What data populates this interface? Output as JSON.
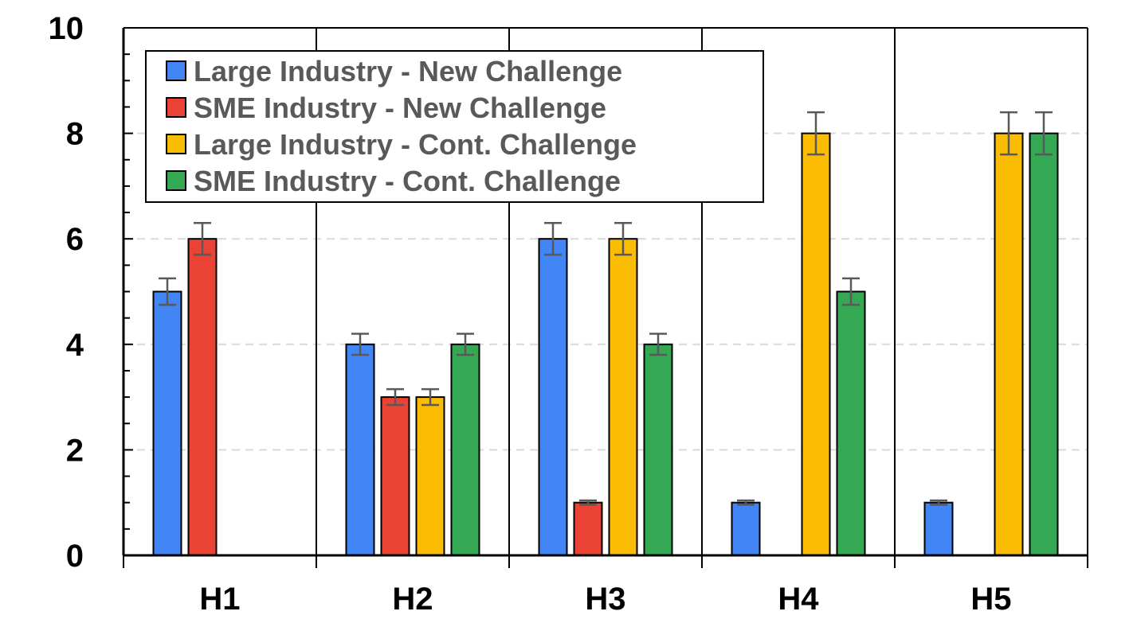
{
  "chart_data": {
    "type": "bar",
    "title": "",
    "xlabel": "",
    "ylabel": "",
    "ylim": [
      0,
      10
    ],
    "yticks": [
      "0",
      "2",
      "4",
      "6",
      "8",
      "10"
    ],
    "grid": true,
    "legend_position": "top-left",
    "categories": [
      "H1",
      "H2",
      "H3",
      "H4",
      "H5"
    ],
    "series": [
      {
        "name": "Large Industry - New Challenge",
        "color": "#4285f4",
        "values": [
          5,
          4,
          6,
          1,
          1
        ],
        "errors": [
          0.25,
          0.2,
          0.3,
          0.04,
          0.04
        ]
      },
      {
        "name": "SME Industry - New Challenge",
        "color": "#ea4335",
        "values": [
          6,
          3,
          1,
          null,
          null
        ],
        "errors": [
          0.3,
          0.15,
          0.04,
          null,
          null
        ]
      },
      {
        "name": "Large Industry - Cont. Challenge",
        "color": "#fbbc04",
        "values": [
          null,
          3,
          6,
          8,
          8
        ],
        "errors": [
          null,
          0.15,
          0.3,
          0.4,
          0.4
        ]
      },
      {
        "name": "SME Industry - Cont. Challenge",
        "color": "#34a853",
        "values": [
          null,
          4,
          4,
          5,
          8
        ],
        "errors": [
          null,
          0.2,
          0.2,
          0.25,
          0.4
        ]
      }
    ]
  }
}
